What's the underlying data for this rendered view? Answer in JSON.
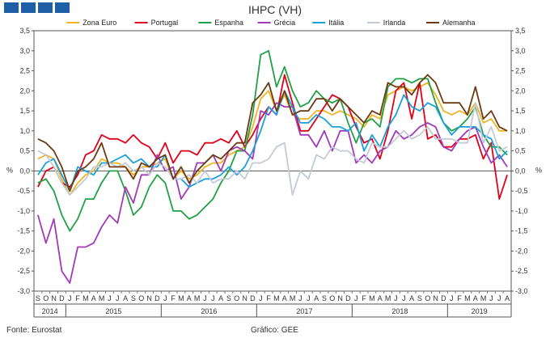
{
  "header": {
    "title": "IHPC (VH)"
  },
  "footer": {
    "source": "Fonte: Eurostat",
    "credit": "Gráfico: GEE"
  },
  "axis": {
    "left_unit": "%",
    "right_unit": "%"
  },
  "chart_data": {
    "type": "line",
    "title": "IHPC (VH)",
    "ylim": [
      -3.0,
      3.5
    ],
    "yticks": [
      "3,5",
      "3,0",
      "2,5",
      "2,0",
      "1,5",
      "1,0",
      "0,5",
      "0,0",
      "-0,5",
      "-1,0",
      "-1,5",
      "-2,0",
      "-2,5",
      "-3,0"
    ],
    "legend_position": "top",
    "x": [
      "2014-09",
      "2014-10",
      "2014-11",
      "2014-12",
      "2015-01",
      "2015-02",
      "2015-03",
      "2015-04",
      "2015-05",
      "2015-06",
      "2015-07",
      "2015-08",
      "2015-09",
      "2015-10",
      "2015-11",
      "2015-12",
      "2016-01",
      "2016-02",
      "2016-03",
      "2016-04",
      "2016-05",
      "2016-06",
      "2016-07",
      "2016-08",
      "2016-09",
      "2016-10",
      "2016-11",
      "2016-12",
      "2017-01",
      "2017-02",
      "2017-03",
      "2017-04",
      "2017-05",
      "2017-06",
      "2017-07",
      "2017-08",
      "2017-09",
      "2017-10",
      "2017-11",
      "2017-12",
      "2018-01",
      "2018-02",
      "2018-03",
      "2018-04",
      "2018-05",
      "2018-06",
      "2018-07",
      "2018-08",
      "2018-09",
      "2018-10",
      "2018-11",
      "2018-12",
      "2019-01",
      "2019-02",
      "2019-03",
      "2019-04",
      "2019-05",
      "2019-06",
      "2019-07",
      "2019-08"
    ],
    "month_labels": [
      "S",
      "O",
      "N",
      "D",
      "J",
      "F",
      "M",
      "A",
      "M",
      "J",
      "J",
      "A",
      "S",
      "O",
      "N",
      "D",
      "J",
      "F",
      "M",
      "A",
      "M",
      "J",
      "J",
      "A",
      "S",
      "O",
      "N",
      "D",
      "J",
      "F",
      "M",
      "A",
      "M",
      "J",
      "J",
      "A",
      "S",
      "O",
      "N",
      "D",
      "J",
      "F",
      "M",
      "A",
      "M",
      "J",
      "J",
      "A",
      "S",
      "O",
      "N",
      "D",
      "J",
      "F",
      "M",
      "A",
      "M",
      "J",
      "J",
      "A"
    ],
    "years": [
      {
        "label": "2014",
        "start": 0,
        "end": 4
      },
      {
        "label": "2015",
        "start": 4,
        "end": 16
      },
      {
        "label": "2016",
        "start": 16,
        "end": 28
      },
      {
        "label": "2017",
        "start": 28,
        "end": 40
      },
      {
        "label": "2018",
        "start": 40,
        "end": 52
      },
      {
        "label": "2019",
        "start": 52,
        "end": 60
      }
    ],
    "series": [
      {
        "name": "Zona Euro",
        "color": "#f0b323",
        "values": [
          0.3,
          0.4,
          0.3,
          -0.2,
          -0.6,
          -0.3,
          -0.1,
          0.0,
          0.3,
          0.2,
          0.2,
          0.1,
          -0.1,
          0.1,
          0.1,
          0.2,
          0.3,
          -0.2,
          0.0,
          -0.2,
          -0.1,
          0.1,
          0.2,
          0.2,
          0.4,
          0.5,
          0.6,
          1.1,
          1.8,
          2.0,
          1.5,
          1.9,
          1.4,
          1.3,
          1.3,
          1.5,
          1.5,
          1.4,
          1.5,
          1.4,
          1.3,
          1.1,
          1.4,
          1.3,
          1.9,
          2.0,
          2.1,
          2.0,
          2.1,
          2.2,
          1.9,
          1.5,
          1.4,
          1.5,
          1.4,
          1.7,
          1.2,
          1.3,
          1.0,
          1.0
        ]
      },
      {
        "name": "Portugal",
        "color": "#e1001a",
        "values": [
          -0.4,
          0.0,
          0.1,
          -0.3,
          -0.4,
          -0.1,
          0.4,
          0.5,
          0.9,
          0.8,
          0.8,
          0.7,
          0.9,
          0.7,
          0.6,
          0.3,
          0.7,
          0.2,
          0.5,
          0.5,
          0.4,
          0.7,
          0.7,
          0.8,
          0.7,
          1.0,
          0.6,
          0.9,
          1.3,
          1.6,
          1.4,
          2.4,
          1.7,
          1.0,
          1.0,
          1.3,
          1.6,
          1.9,
          1.8,
          1.6,
          1.1,
          0.7,
          0.8,
          0.3,
          1.0,
          2.0,
          2.2,
          1.3,
          2.2,
          0.8,
          0.9,
          0.6,
          0.6,
          0.8,
          0.8,
          0.9,
          0.3,
          0.7,
          -0.7,
          -0.1
        ]
      },
      {
        "name": "Espanha",
        "color": "#22a045",
        "values": [
          -0.3,
          -0.2,
          -0.5,
          -1.1,
          -1.5,
          -1.2,
          -0.7,
          -0.7,
          -0.3,
          0.0,
          0.0,
          -0.5,
          -1.1,
          -0.9,
          -0.4,
          -0.1,
          -0.3,
          -1.0,
          -1.0,
          -1.2,
          -1.1,
          -0.9,
          -0.7,
          -0.3,
          0.0,
          0.5,
          0.5,
          1.4,
          2.9,
          3.0,
          2.1,
          2.6,
          2.0,
          1.6,
          1.7,
          2.0,
          1.8,
          1.7,
          1.8,
          1.2,
          0.7,
          1.2,
          1.3,
          1.1,
          2.1,
          2.3,
          2.3,
          2.2,
          2.3,
          2.3,
          1.7,
          1.2,
          1.0,
          1.1,
          1.3,
          1.6,
          0.9,
          0.6,
          0.6,
          0.4
        ]
      },
      {
        "name": "Grécia",
        "color": "#a03ab8",
        "values": [
          -1.1,
          -1.8,
          -1.2,
          -2.5,
          -2.8,
          -1.9,
          -1.9,
          -1.8,
          -1.4,
          -1.1,
          -1.3,
          -0.4,
          -0.8,
          -0.1,
          -0.1,
          0.4,
          0.0,
          0.1,
          -0.7,
          -0.4,
          0.2,
          0.2,
          0.4,
          0.0,
          0.5,
          0.6,
          0.5,
          0.3,
          1.5,
          1.4,
          1.7,
          1.6,
          1.6,
          0.9,
          0.9,
          0.6,
          1.0,
          0.5,
          1.0,
          1.0,
          0.2,
          0.4,
          0.2,
          0.5,
          0.6,
          1.0,
          0.8,
          0.9,
          1.1,
          1.2,
          1.1,
          0.6,
          0.5,
          0.8,
          1.0,
          1.1,
          0.6,
          0.2,
          0.4,
          0.1
        ]
      },
      {
        "name": "Itália",
        "color": "#1aa0dc",
        "values": [
          -0.1,
          0.2,
          0.3,
          -0.1,
          -0.5,
          0.1,
          0.0,
          -0.1,
          0.2,
          0.2,
          0.3,
          0.4,
          0.2,
          0.3,
          0.1,
          0.1,
          0.4,
          -0.2,
          -0.2,
          -0.4,
          -0.3,
          -0.2,
          -0.2,
          -0.1,
          0.1,
          -0.1,
          0.1,
          0.5,
          1.0,
          1.6,
          1.4,
          2.0,
          1.6,
          1.2,
          1.2,
          1.4,
          1.3,
          1.1,
          1.1,
          1.0,
          1.2,
          0.5,
          0.9,
          0.6,
          1.1,
          1.4,
          1.9,
          1.6,
          1.5,
          1.7,
          1.6,
          1.2,
          0.9,
          1.1,
          1.1,
          1.1,
          0.9,
          0.8,
          0.3,
          0.5
        ]
      },
      {
        "name": "Irlanda",
        "color": "#c4cbd6",
        "values": [
          0.5,
          0.4,
          0.1,
          -0.3,
          -0.6,
          -0.4,
          -0.2,
          0.1,
          0.1,
          0.2,
          0.1,
          0.2,
          0.0,
          0.1,
          -0.1,
          0.2,
          0.1,
          -0.2,
          -0.2,
          -0.1,
          -0.3,
          0.0,
          -0.3,
          -0.2,
          -0.2,
          0.0,
          -0.2,
          0.2,
          0.2,
          0.3,
          0.6,
          0.7,
          -0.6,
          0.0,
          -0.2,
          0.4,
          0.3,
          0.6,
          0.5,
          0.5,
          0.3,
          0.2,
          0.7,
          0.6,
          0.6,
          0.8,
          1.0,
          0.8,
          0.9,
          1.1,
          0.8,
          0.8,
          0.8,
          0.7,
          0.7,
          1.7,
          0.7,
          1.1,
          0.5,
          0.6
        ]
      },
      {
        "name": "Alemanha",
        "color": "#6b3a12",
        "values": [
          0.8,
          0.7,
          0.5,
          0.1,
          -0.5,
          0.0,
          0.1,
          0.3,
          0.7,
          0.1,
          0.1,
          0.1,
          -0.2,
          0.2,
          0.1,
          0.3,
          0.4,
          -0.2,
          0.1,
          -0.3,
          0.0,
          0.2,
          0.4,
          0.3,
          0.5,
          0.7,
          0.7,
          1.7,
          1.9,
          2.2,
          1.5,
          2.0,
          1.4,
          1.5,
          1.5,
          1.8,
          1.8,
          1.5,
          1.8,
          1.6,
          1.4,
          1.2,
          1.5,
          1.4,
          2.2,
          2.1,
          2.1,
          1.9,
          2.2,
          2.4,
          2.2,
          1.7,
          1.7,
          1.7,
          1.4,
          2.1,
          1.3,
          1.5,
          1.1,
          1.0
        ]
      }
    ]
  }
}
